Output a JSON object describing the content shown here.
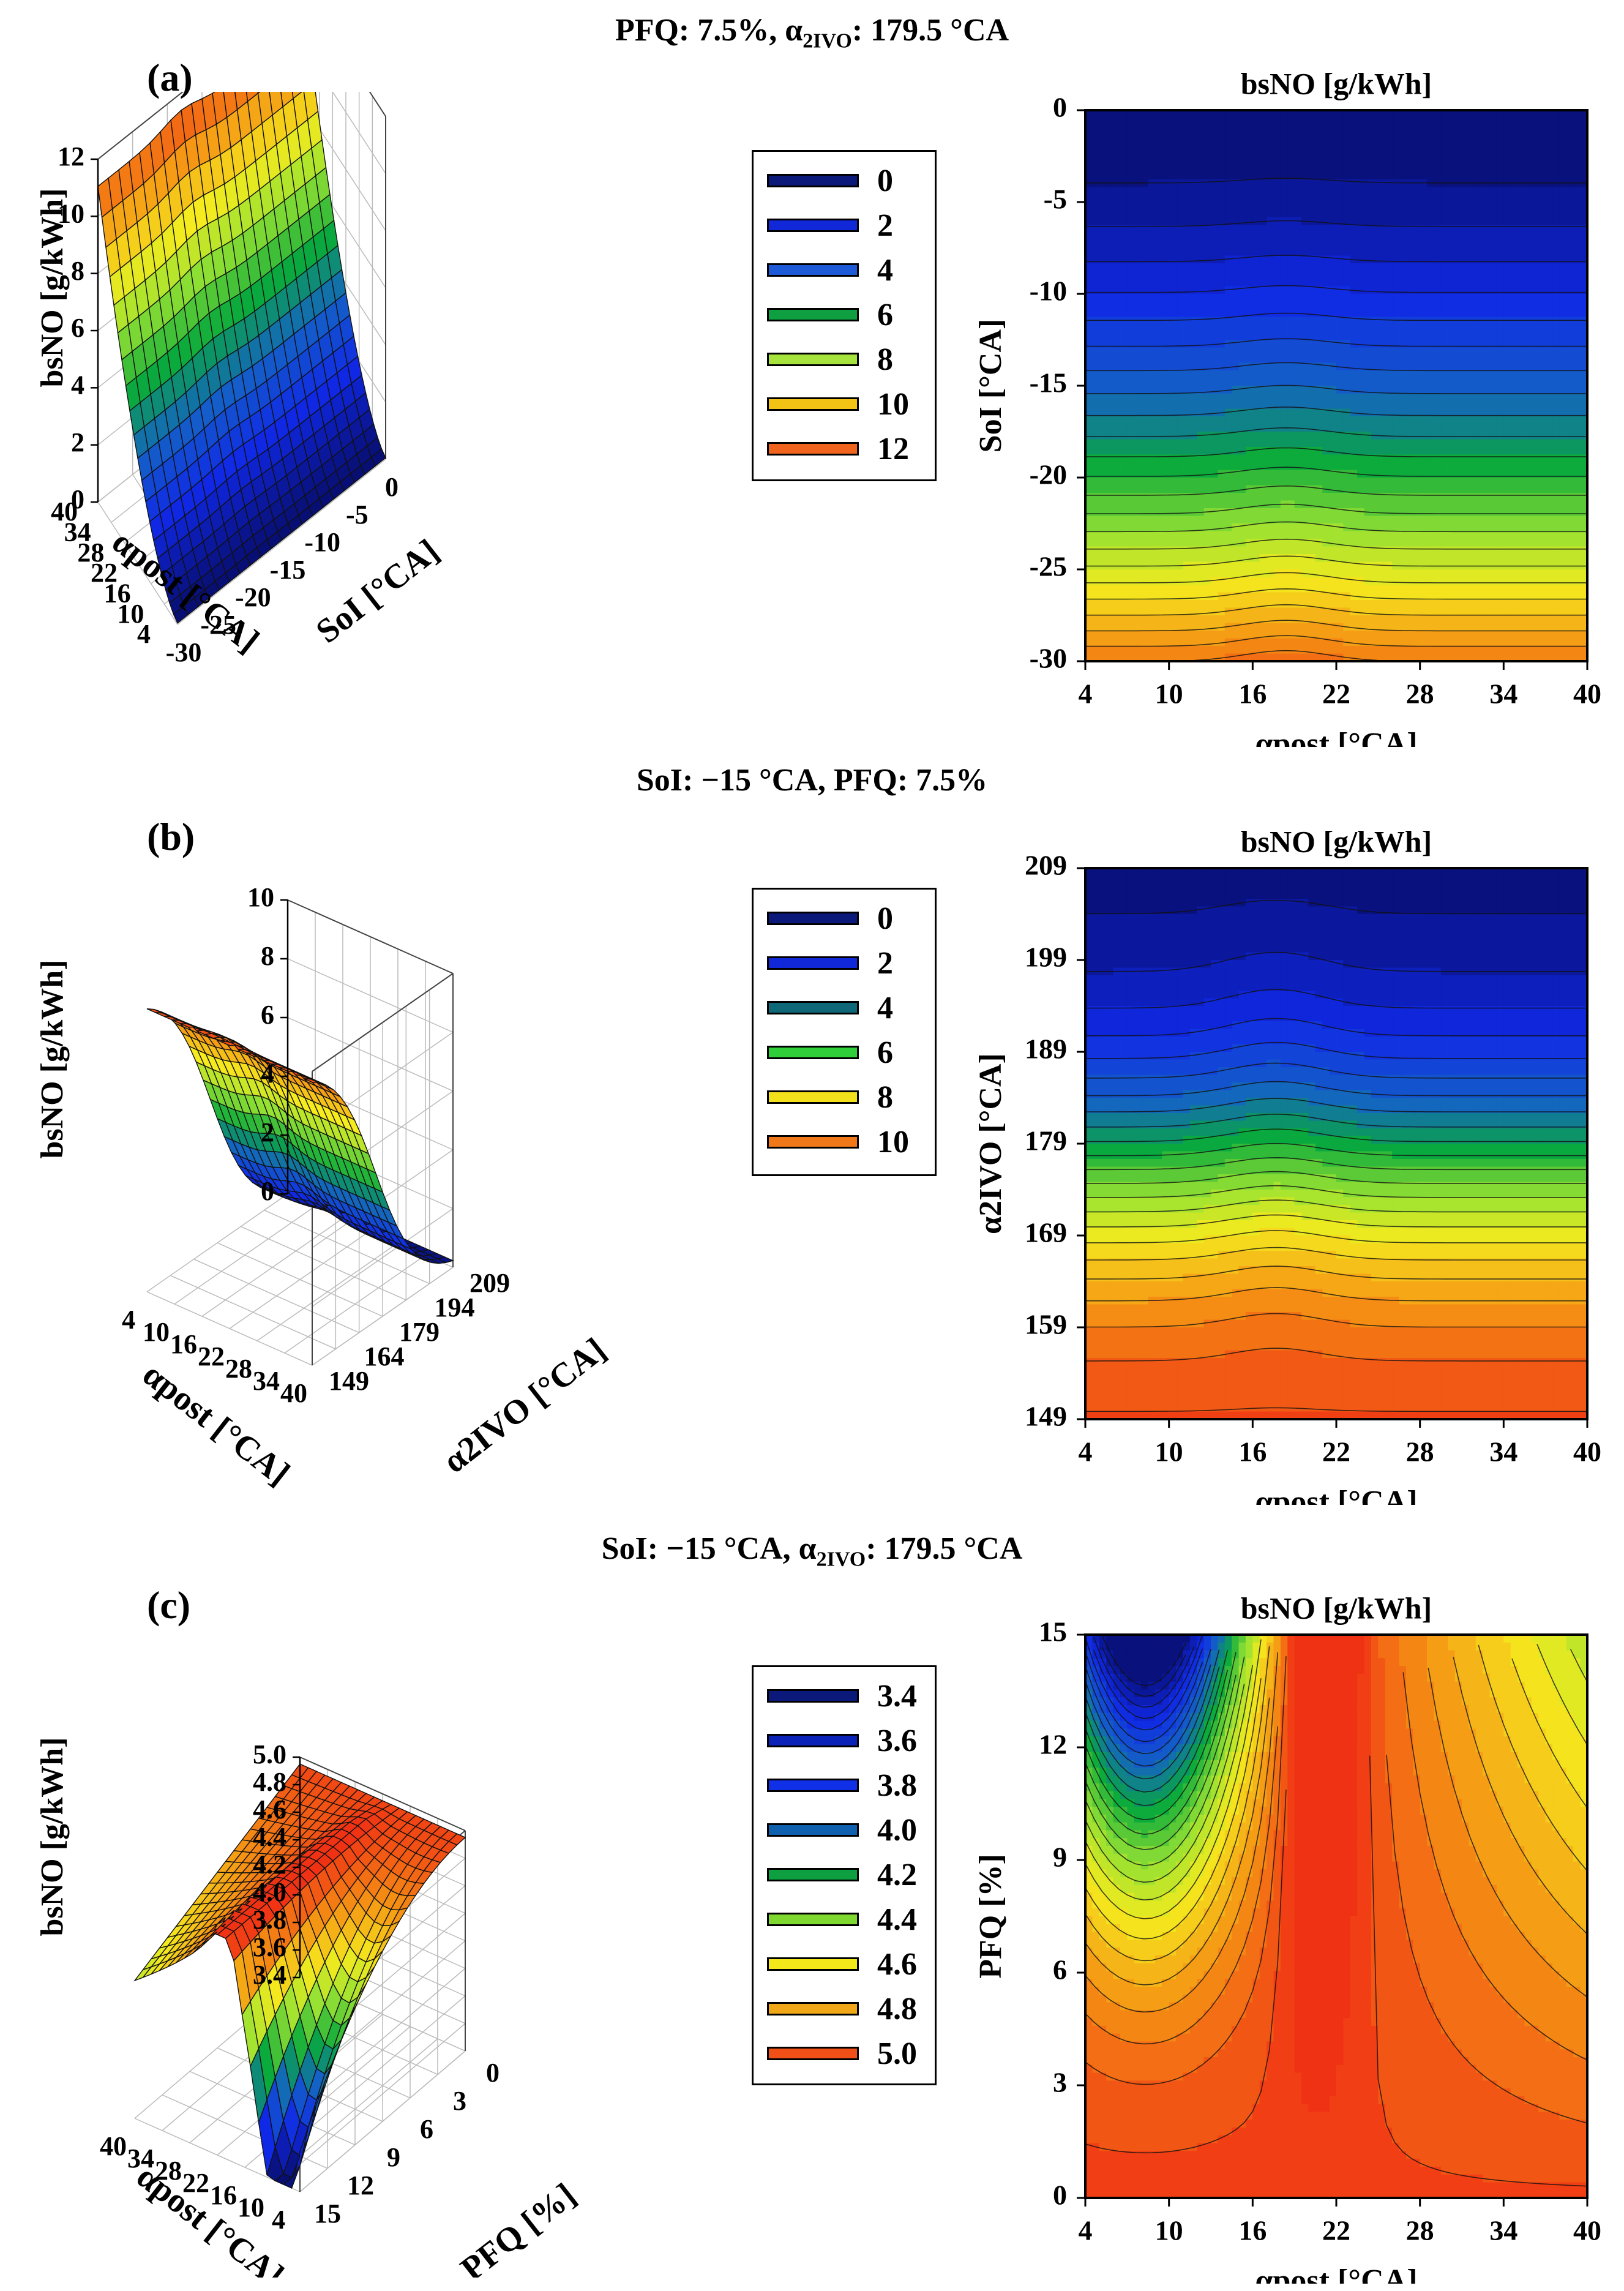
{
  "figure": {
    "panels": [
      {
        "id": "a",
        "label": "(a)",
        "title": "PFQ: 7.5%, α2IVO: 179.5 °CA",
        "title_parts": [
          "PFQ: 7.5%, α",
          "2IVO",
          ": 179.5 °CA"
        ],
        "legend": [
          "0",
          "2",
          "4",
          "6",
          "8",
          "10",
          "12"
        ],
        "legend_colors": [
          "#0b1a7a",
          "#1028d8",
          "#1c5ad8",
          "#0ea040",
          "#a6e33c",
          "#f2c214",
          "#f0641e"
        ]
      },
      {
        "id": "b",
        "label": "(b)",
        "title": "SoI: −15 °CA, PFQ: 7.5%",
        "title_parts": [
          "SoI: −15 °CA, PFQ: 7.5%",
          "",
          ""
        ],
        "legend": [
          "0",
          "2",
          "4",
          "6",
          "8",
          "10"
        ],
        "legend_colors": [
          "#0b1a7a",
          "#1028d8",
          "#0e6878",
          "#2fcf3a",
          "#f2e01a",
          "#f07818"
        ]
      },
      {
        "id": "c",
        "label": "(c)",
        "title": "SoI: −15 °CA, α2IVO: 179.5 °CA",
        "title_parts": [
          "SoI: −15 °CA, α",
          "2IVO",
          ": 179.5 °CA"
        ],
        "legend": [
          "3.4",
          "3.6",
          "3.8",
          "4.0",
          "4.2",
          "4.4",
          "4.6",
          "4.8",
          "5.0"
        ],
        "legend_colors": [
          "#0b1a7a",
          "#0a22b8",
          "#1030e8",
          "#1060b0",
          "#0ea040",
          "#7ed830",
          "#f2e81a",
          "#f0a818",
          "#f05018"
        ]
      }
    ]
  },
  "chart_data": [
    {
      "type": "surface",
      "panel": "a",
      "zlabel": "bsNO [g/kWh]",
      "xlabel": "SoI [°CA]",
      "ylabel": "αpost [°CA]",
      "x_ticks": [
        "-30",
        "-25",
        "-20",
        "-15",
        "-10",
        "-5",
        "0"
      ],
      "y_ticks": [
        "4",
        "10",
        "16",
        "22",
        "28",
        "34",
        "40"
      ],
      "z_ticks": [
        "0",
        "2",
        "4",
        "6",
        "8",
        "10",
        "12"
      ],
      "xlim": [
        -30,
        0
      ],
      "ylim": [
        4,
        40
      ],
      "zlim": [
        0,
        12
      ]
    },
    {
      "type": "contour",
      "panel": "a",
      "title": "bsNO [g/kWh]",
      "xlabel": "αpost [°CA]",
      "ylabel": "SoI [°CA]",
      "x_ticks": [
        "4",
        "10",
        "16",
        "22",
        "28",
        "34",
        "40"
      ],
      "y_ticks": [
        "0",
        "-5",
        "-10",
        "-15",
        "-20",
        "-25",
        "-30"
      ],
      "xlim": [
        4,
        40
      ],
      "ylim": [
        -30,
        0
      ],
      "zlim": [
        0,
        12.5
      ]
    },
    {
      "type": "surface",
      "panel": "b",
      "zlabel": "bsNO [g/kWh]",
      "xlabel": "αpost [°CA]",
      "ylabel": "α2IVO [°CA]",
      "x_ticks": [
        "4",
        "10",
        "16",
        "22",
        "28",
        "34",
        "40"
      ],
      "y_ticks": [
        "149",
        "164",
        "179",
        "194",
        "209"
      ],
      "z_ticks": [
        "0",
        "2",
        "4",
        "6",
        "8",
        "10"
      ],
      "xlim": [
        4,
        40
      ],
      "ylim": [
        149,
        209
      ],
      "zlim": [
        0,
        10
      ]
    },
    {
      "type": "contour",
      "panel": "b",
      "title": "bsNO [g/kWh]",
      "xlabel": "αpost [°CA]",
      "ylabel": "α2IVO [°CA]",
      "x_ticks": [
        "4",
        "10",
        "16",
        "22",
        "28",
        "34",
        "40"
      ],
      "y_ticks": [
        "209",
        "199",
        "189",
        "179",
        "169",
        "159",
        "149"
      ],
      "xlim": [
        4,
        40
      ],
      "ylim": [
        149,
        209
      ],
      "zlim": [
        0,
        10
      ]
    },
    {
      "type": "surface",
      "panel": "c",
      "zlabel": "bsNO [g/kWh]",
      "xlabel": "αpost [°CA]",
      "ylabel": "PFQ [%]",
      "x_ticks": [
        "40",
        "34",
        "28",
        "22",
        "16",
        "10",
        "4"
      ],
      "y_ticks": [
        "15",
        "12",
        "9",
        "6",
        "3",
        "0"
      ],
      "z_ticks": [
        "3.4",
        "3.6",
        "3.8",
        "4.0",
        "4.2",
        "4.4",
        "4.6",
        "4.8",
        "5.0"
      ],
      "xlim": [
        4,
        40
      ],
      "ylim": [
        0,
        15
      ],
      "zlim": [
        3.4,
        5.0
      ]
    },
    {
      "type": "contour",
      "panel": "c",
      "title": "bsNO [g/kWh]",
      "xlabel": "αpost [°CA]",
      "ylabel": "PFQ [%]",
      "x_ticks": [
        "4",
        "10",
        "16",
        "22",
        "28",
        "34",
        "40"
      ],
      "y_ticks": [
        "15",
        "12",
        "9",
        "6",
        "3",
        "0"
      ],
      "xlim": [
        4,
        40
      ],
      "ylim": [
        0,
        15
      ],
      "zlim": [
        3.4,
        5.0
      ]
    }
  ]
}
